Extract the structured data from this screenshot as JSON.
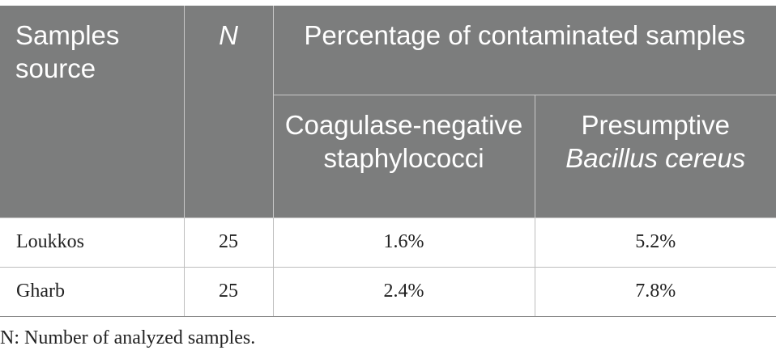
{
  "table": {
    "headers": {
      "source": "Samples source",
      "n": "N",
      "percentage_group": "Percentage of contaminated samples",
      "col_cns": "Coagulase-negative staphylococci",
      "col_bc_prefix": "Presumptive",
      "col_bc_italic": "Bacillus cereus"
    },
    "rows": [
      {
        "source": "Loukkos",
        "n": "25",
        "cns": "1.6%",
        "bc": "5.2%"
      },
      {
        "source": "Gharb",
        "n": "25",
        "cns": "2.4%",
        "bc": "7.8%"
      }
    ]
  },
  "footnote": "N: Number of analyzed samples."
}
